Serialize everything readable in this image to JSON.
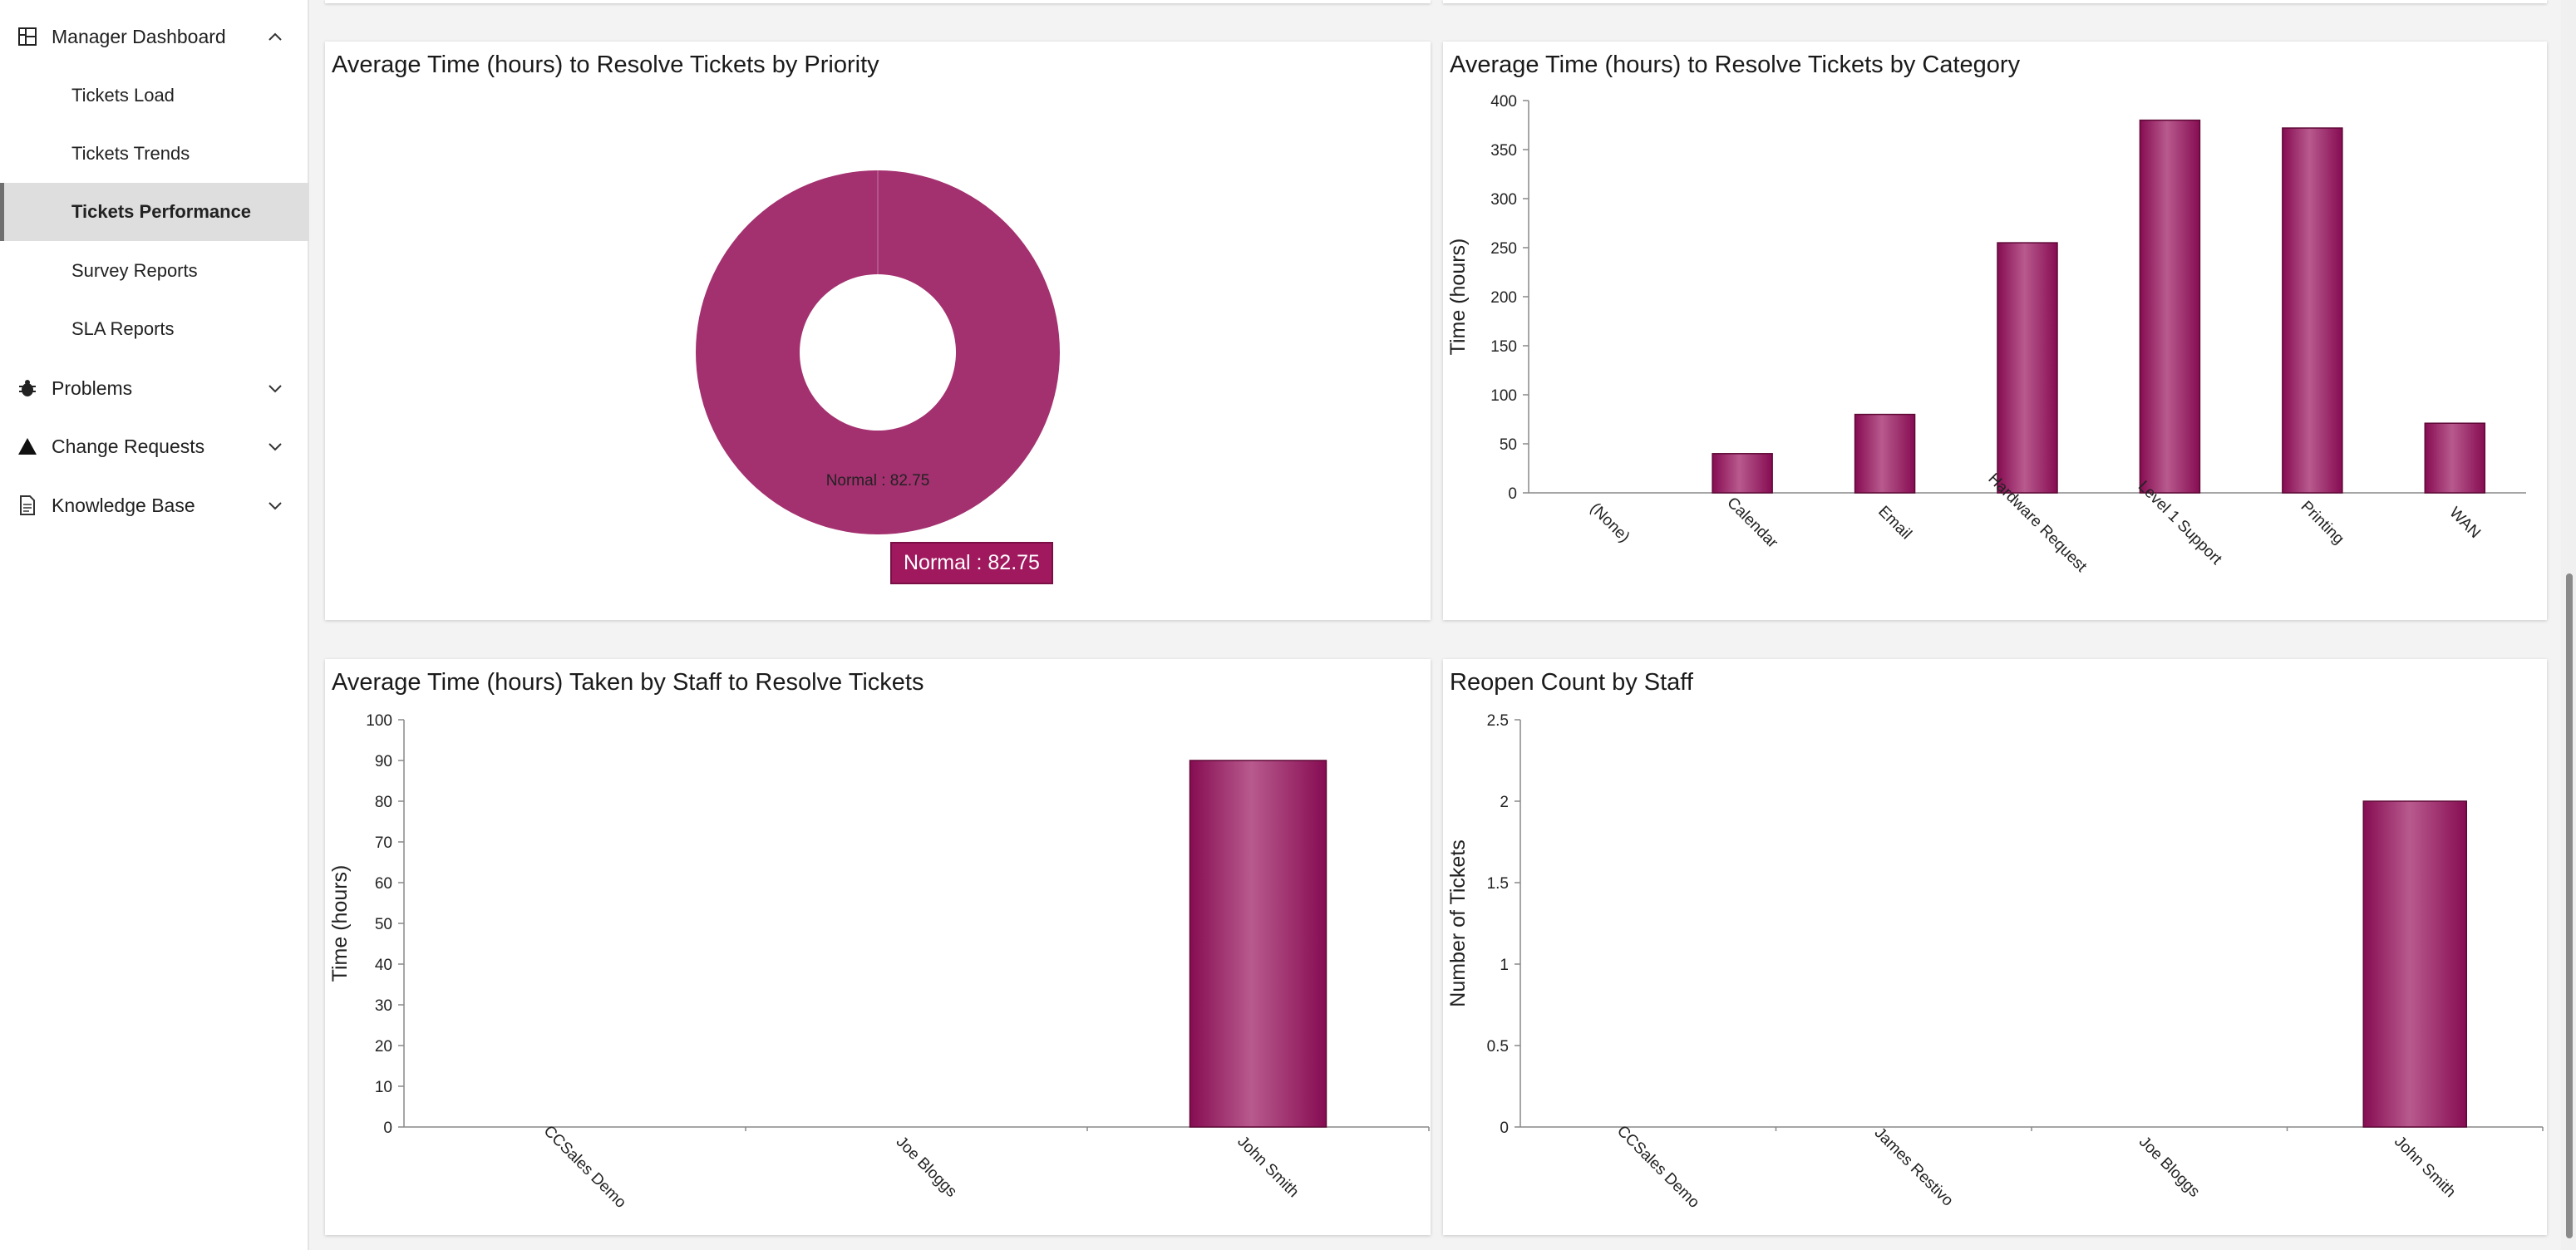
{
  "sidebar": {
    "manager_dashboard": "Manager Dashboard",
    "sub_items": [
      "Tickets Load",
      "Tickets Trends",
      "Tickets Performance",
      "Survey Reports",
      "SLA Reports"
    ],
    "problems": "Problems",
    "change_requests": "Change Requests",
    "knowledge_base": "Knowledge Base"
  },
  "cards": {
    "priority": {
      "title": "Average Time (hours) to Resolve Tickets by Priority",
      "slice_label": "Normal : 82.75",
      "tooltip": "Normal : 82.75"
    },
    "category": {
      "title": "Average Time (hours) to Resolve Tickets by Category"
    },
    "staff_time": {
      "title": "Average Time (hours) Taken by Staff to Resolve Tickets"
    },
    "reopen": {
      "title": "Reopen Count by Staff"
    }
  },
  "colors": {
    "bar": "#a3306f",
    "bar_dark": "#860c52",
    "bar_light": "#b85a8e",
    "tooltip": "#a0185e"
  },
  "chart_data": [
    {
      "type": "pie",
      "title": "Average Time (hours) to Resolve Tickets by Priority",
      "categories": [
        "Normal"
      ],
      "values": [
        82.75
      ],
      "donut": true
    },
    {
      "type": "bar",
      "title": "Average Time (hours) to Resolve Tickets by Category",
      "categories": [
        "(None)",
        "Calendar",
        "Email",
        "Hardware Request",
        "Level 1 Support",
        "Printing",
        "WAN"
      ],
      "values": [
        0,
        40,
        80,
        255,
        380,
        372,
        71
      ],
      "ylabel": "Time (hours)",
      "ylim": [
        0,
        400
      ],
      "yticks": [
        0,
        50,
        100,
        150,
        200,
        250,
        300,
        350,
        400
      ]
    },
    {
      "type": "bar",
      "title": "Average Time (hours) Taken by Staff to Resolve Tickets",
      "categories": [
        "CCSales Demo",
        "Joe Bloggs",
        "John Smith"
      ],
      "values": [
        0,
        0,
        90
      ],
      "ylabel": "Time (hours)",
      "ylim": [
        0,
        100
      ],
      "yticks": [
        0,
        10,
        20,
        30,
        40,
        50,
        60,
        70,
        80,
        90,
        100
      ]
    },
    {
      "type": "bar",
      "title": "Reopen Count by Staff",
      "categories": [
        "CCSales Demo",
        "James Restivo",
        "Joe Bloggs",
        "John Smith"
      ],
      "values": [
        0,
        0,
        0,
        2
      ],
      "ylabel": "Number of Tickets",
      "ylim": [
        0,
        2.5
      ],
      "yticks": [
        0,
        0.5,
        1,
        1.5,
        2,
        2.5
      ]
    }
  ]
}
